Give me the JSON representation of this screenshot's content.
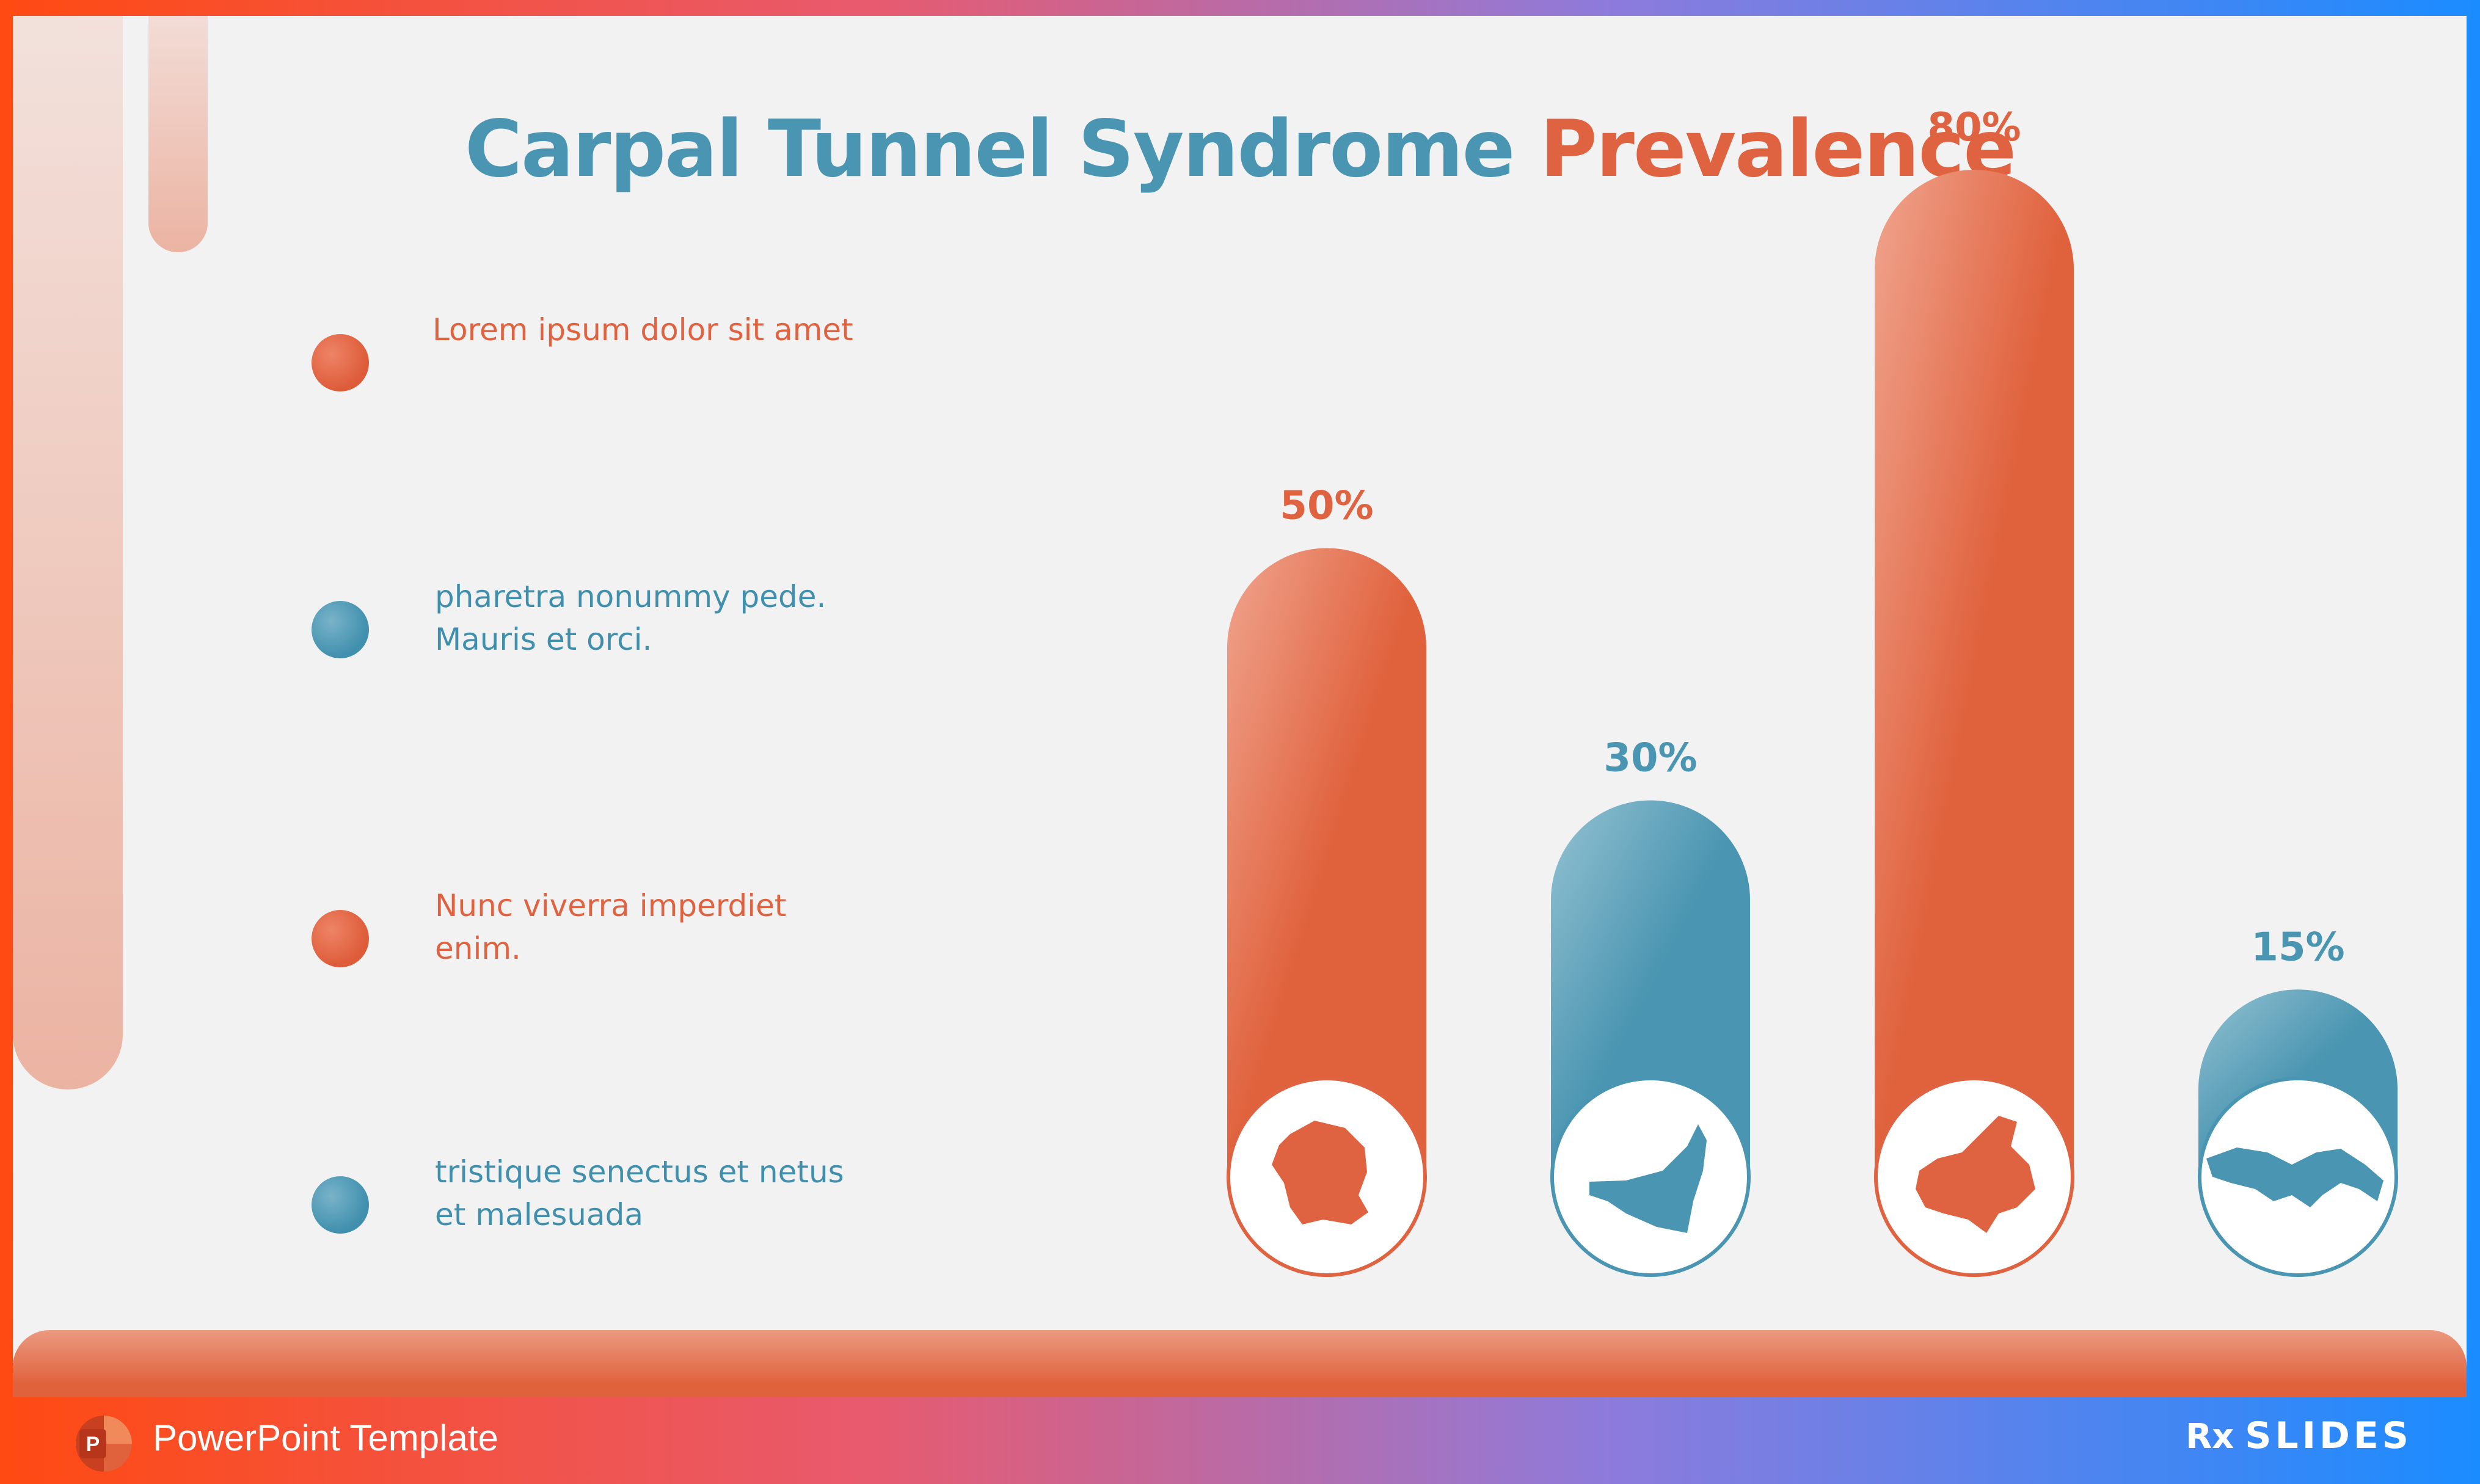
{
  "title": {
    "part1": "Carpal Tunnel Syndrome",
    "part2": "Prevalence"
  },
  "legend": [
    {
      "text": "Lorem ipsum dolor sit amet",
      "color": "orange"
    },
    {
      "text": "pharetra nonummy pede. Mauris et orci.",
      "color": "blue"
    },
    {
      "text": "Nunc viverra imperdiet enim.",
      "color": "orange"
    },
    {
      "text": "tristique senectus et netus et malesuada",
      "color": "blue"
    }
  ],
  "chart_data": {
    "type": "bar",
    "title": "Carpal Tunnel Syndrome Prevalence",
    "categories": [
      "France",
      "United Arab Emirates",
      "Canada",
      "Panama"
    ],
    "values": [
      50,
      30,
      80,
      15
    ],
    "value_labels": [
      "50%",
      "30%",
      "80%",
      "15%"
    ],
    "unit": "%",
    "colors": [
      "#df6340",
      "#4a95b1",
      "#df6340",
      "#4a95b1"
    ],
    "category_icons": [
      "france-map-icon",
      "uae-map-icon",
      "canada-map-icon",
      "panama-map-icon"
    ],
    "ylim": [
      0,
      100
    ],
    "grid": false,
    "xlabel": "",
    "ylabel": ""
  },
  "footer": {
    "label": "PowerPoint Template",
    "brand_rx": "Rx",
    "brand_name": "SLIDES"
  },
  "colors": {
    "orange": "#df6340",
    "blue": "#4a95b1",
    "frame_start": "#ff4a12",
    "frame_end": "#1a8cff"
  }
}
